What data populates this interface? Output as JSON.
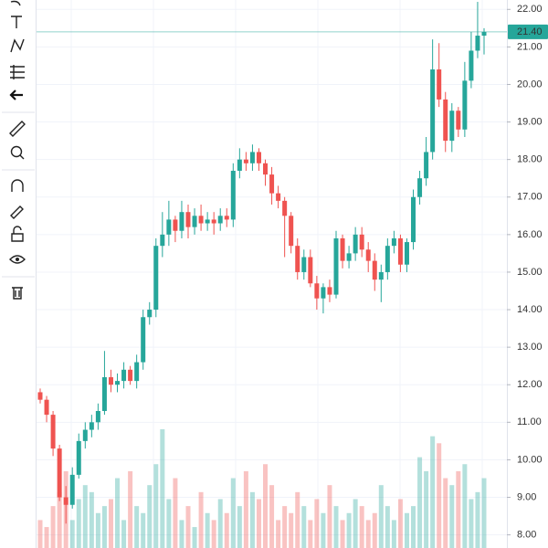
{
  "chart_data": {
    "type": "candlestick",
    "open": [
      11.8,
      11.6,
      11.2,
      10.3,
      9.0,
      8.8,
      9.6,
      10.5,
      10.8,
      11.0,
      11.3,
      12.2,
      12.0,
      12.1,
      12.4,
      12.1,
      12.6,
      13.8,
      14.0,
      15.7,
      16.0,
      16.4,
      16.1,
      16.6,
      16.2,
      16.5,
      16.3,
      16.4,
      16.3,
      16.5,
      16.4,
      17.7,
      18.0,
      17.9,
      18.2,
      17.9,
      17.6,
      17.1,
      16.9,
      16.5,
      15.7,
      15.0,
      15.4,
      14.7,
      14.3,
      14.6,
      14.4,
      15.9,
      15.3,
      15.5,
      16.0,
      15.6,
      15.3,
      14.8,
      15.0,
      15.7,
      15.9,
      15.2,
      15.8,
      17.0,
      17.5,
      18.2,
      20.4,
      19.6,
      18.5,
      19.3,
      18.8,
      20.1,
      20.9,
      21.3
    ],
    "high": [
      11.9,
      11.7,
      11.3,
      10.4,
      9.3,
      9.8,
      10.7,
      11.0,
      11.2,
      11.5,
      12.9,
      12.4,
      12.3,
      12.6,
      12.5,
      12.8,
      14.0,
      14.2,
      15.9,
      16.6,
      16.9,
      16.5,
      16.9,
      16.8,
      16.7,
      16.8,
      16.6,
      16.6,
      16.7,
      16.7,
      17.9,
      18.3,
      18.2,
      18.4,
      18.3,
      18.0,
      17.8,
      17.3,
      17.0,
      16.6,
      15.9,
      15.6,
      15.6,
      14.9,
      14.7,
      14.8,
      16.1,
      16.0,
      15.7,
      16.2,
      16.2,
      15.8,
      15.5,
      15.2,
      15.9,
      16.1,
      16.0,
      15.9,
      17.2,
      17.7,
      18.6,
      21.2,
      21.1,
      19.8,
      19.5,
      19.4,
      20.6,
      21.4,
      22.2,
      21.5
    ],
    "low": [
      11.5,
      11.0,
      10.1,
      8.9,
      8.3,
      8.7,
      9.5,
      10.3,
      10.6,
      10.8,
      11.2,
      11.8,
      11.8,
      11.9,
      12.0,
      11.9,
      12.4,
      13.6,
      13.8,
      15.4,
      15.7,
      15.8,
      15.9,
      15.9,
      16.0,
      16.1,
      16.1,
      16.0,
      16.1,
      16.2,
      16.2,
      17.5,
      17.7,
      17.7,
      17.7,
      17.3,
      16.8,
      16.7,
      15.4,
      15.5,
      14.8,
      14.8,
      14.6,
      14.0,
      13.9,
      14.2,
      14.3,
      15.1,
      15.1,
      15.3,
      15.4,
      15.0,
      14.5,
      14.2,
      14.8,
      15.5,
      15.0,
      15.0,
      15.6,
      16.8,
      17.3,
      18.0,
      19.4,
      18.2,
      18.2,
      18.6,
      18.6,
      19.9,
      20.7,
      20.8
    ],
    "close": [
      11.6,
      11.2,
      10.3,
      9.0,
      8.8,
      9.6,
      10.5,
      10.8,
      11.0,
      11.3,
      12.2,
      12.0,
      12.1,
      12.4,
      12.1,
      12.6,
      13.8,
      14.0,
      15.7,
      16.0,
      16.4,
      16.1,
      16.6,
      16.2,
      16.5,
      16.3,
      16.4,
      16.3,
      16.5,
      16.4,
      17.7,
      18.0,
      17.9,
      18.2,
      17.9,
      17.6,
      17.1,
      16.9,
      16.5,
      15.7,
      15.0,
      15.4,
      14.7,
      14.3,
      14.6,
      14.4,
      15.9,
      15.3,
      15.5,
      16.0,
      15.6,
      15.3,
      14.8,
      15.0,
      15.7,
      15.9,
      15.2,
      15.8,
      17.0,
      17.5,
      18.2,
      20.4,
      19.6,
      18.5,
      19.3,
      18.8,
      20.1,
      20.9,
      21.3,
      21.4
    ],
    "volume": [
      20,
      15,
      30,
      40,
      55,
      20,
      35,
      45,
      40,
      25,
      30,
      35,
      50,
      20,
      55,
      30,
      25,
      45,
      60,
      85,
      35,
      50,
      20,
      30,
      15,
      40,
      25,
      20,
      35,
      25,
      50,
      30,
      55,
      40,
      35,
      60,
      45,
      20,
      30,
      25,
      40,
      30,
      20,
      35,
      25,
      45,
      30,
      20,
      25,
      35,
      30,
      20,
      25,
      45,
      30,
      20,
      35,
      25,
      30,
      65,
      55,
      80,
      75,
      50,
      45,
      55,
      60,
      35,
      40,
      50
    ],
    "up_color": "#26a69a",
    "down_color": "#ef5350",
    "ylim": [
      7.65,
      22.25
    ],
    "yticks": [
      {
        "value": 8,
        "label": "8.00"
      },
      {
        "value": 9,
        "label": "9.00"
      },
      {
        "value": 10,
        "label": "10.00"
      },
      {
        "value": 11,
        "label": "11.00"
      },
      {
        "value": 12,
        "label": "12.00"
      },
      {
        "value": 13,
        "label": "13.00"
      },
      {
        "value": 14,
        "label": "14.00"
      },
      {
        "value": 15,
        "label": "15.00"
      },
      {
        "value": 16,
        "label": "16.00"
      },
      {
        "value": 17,
        "label": "17.00"
      },
      {
        "value": 18,
        "label": "18.00"
      },
      {
        "value": 19,
        "label": "19.00"
      },
      {
        "value": 20,
        "label": "20.00"
      },
      {
        "value": 21,
        "label": "21.00"
      },
      {
        "value": 22,
        "label": "22.00"
      }
    ],
    "last_price": {
      "value": 21.4,
      "label": "21.40"
    },
    "grid": true
  }
}
